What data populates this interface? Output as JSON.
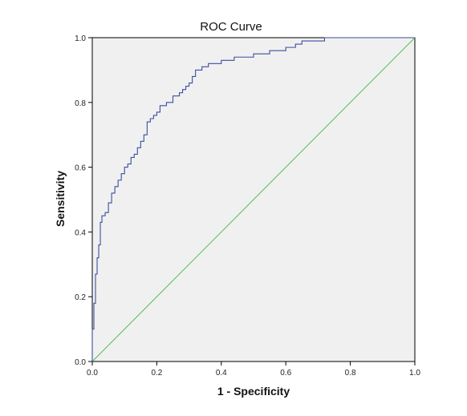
{
  "chart_data": {
    "type": "line",
    "title": "ROC Curve",
    "xlabel": "1 - Specificity",
    "ylabel": "Sensitivity",
    "xlim": [
      0.0,
      1.0
    ],
    "ylim": [
      0.0,
      1.0
    ],
    "x_ticks": [
      "0.0",
      "0.2",
      "0.4",
      "0.6",
      "0.8",
      "1.0"
    ],
    "y_ticks": [
      "0.0",
      "0.2",
      "0.4",
      "0.6",
      "0.8",
      "1.0"
    ],
    "grid": false,
    "legend": "none",
    "plot_background": "#f0f0f0",
    "series": [
      {
        "color": "#3a4fa0",
        "style": "step",
        "x": [
          0.0,
          0.0,
          0.005,
          0.005,
          0.01,
          0.01,
          0.015,
          0.015,
          0.02,
          0.02,
          0.025,
          0.025,
          0.03,
          0.03,
          0.035,
          0.035,
          0.04,
          0.04,
          0.05,
          0.05,
          0.06,
          0.06,
          0.07,
          0.07,
          0.08,
          0.08,
          0.09,
          0.09,
          0.1,
          0.1,
          0.11,
          0.11,
          0.12,
          0.12,
          0.13,
          0.13,
          0.14,
          0.14,
          0.15,
          0.15,
          0.16,
          0.16,
          0.17,
          0.17,
          0.18,
          0.18,
          0.19,
          0.19,
          0.2,
          0.2,
          0.21,
          0.21,
          0.22,
          0.22,
          0.23,
          0.23,
          0.25,
          0.25,
          0.27,
          0.27,
          0.28,
          0.28,
          0.29,
          0.29,
          0.3,
          0.3,
          0.31,
          0.31,
          0.32,
          0.32,
          0.33,
          0.33,
          0.34,
          0.34,
          0.36,
          0.36,
          0.4,
          0.4,
          0.44,
          0.44,
          0.5,
          0.5,
          0.55,
          0.55,
          0.6,
          0.6,
          0.63,
          0.63,
          0.65,
          0.65,
          0.69,
          0.69,
          0.72,
          0.72,
          0.74,
          0.74,
          0.82,
          0.82,
          1.0
        ],
        "y": [
          0.0,
          0.1,
          0.1,
          0.18,
          0.18,
          0.27,
          0.27,
          0.32,
          0.32,
          0.36,
          0.36,
          0.43,
          0.43,
          0.45,
          0.45,
          0.45,
          0.45,
          0.46,
          0.46,
          0.49,
          0.49,
          0.52,
          0.52,
          0.54,
          0.54,
          0.56,
          0.56,
          0.58,
          0.58,
          0.6,
          0.6,
          0.61,
          0.61,
          0.63,
          0.63,
          0.64,
          0.64,
          0.66,
          0.66,
          0.68,
          0.68,
          0.7,
          0.7,
          0.74,
          0.74,
          0.75,
          0.75,
          0.76,
          0.76,
          0.77,
          0.77,
          0.79,
          0.79,
          0.79,
          0.79,
          0.8,
          0.8,
          0.82,
          0.82,
          0.83,
          0.83,
          0.84,
          0.84,
          0.85,
          0.85,
          0.86,
          0.86,
          0.88,
          0.88,
          0.9,
          0.9,
          0.9,
          0.9,
          0.91,
          0.91,
          0.92,
          0.92,
          0.93,
          0.93,
          0.94,
          0.94,
          0.95,
          0.95,
          0.96,
          0.96,
          0.97,
          0.97,
          0.98,
          0.98,
          0.99,
          0.99,
          0.99,
          0.99,
          1.0,
          1.0,
          1.0,
          1.0,
          1.0,
          1.0
        ]
      },
      {
        "color": "#4cc04c",
        "style": "line",
        "x": [
          0.0,
          1.0
        ],
        "y": [
          0.0,
          1.0
        ]
      }
    ]
  }
}
